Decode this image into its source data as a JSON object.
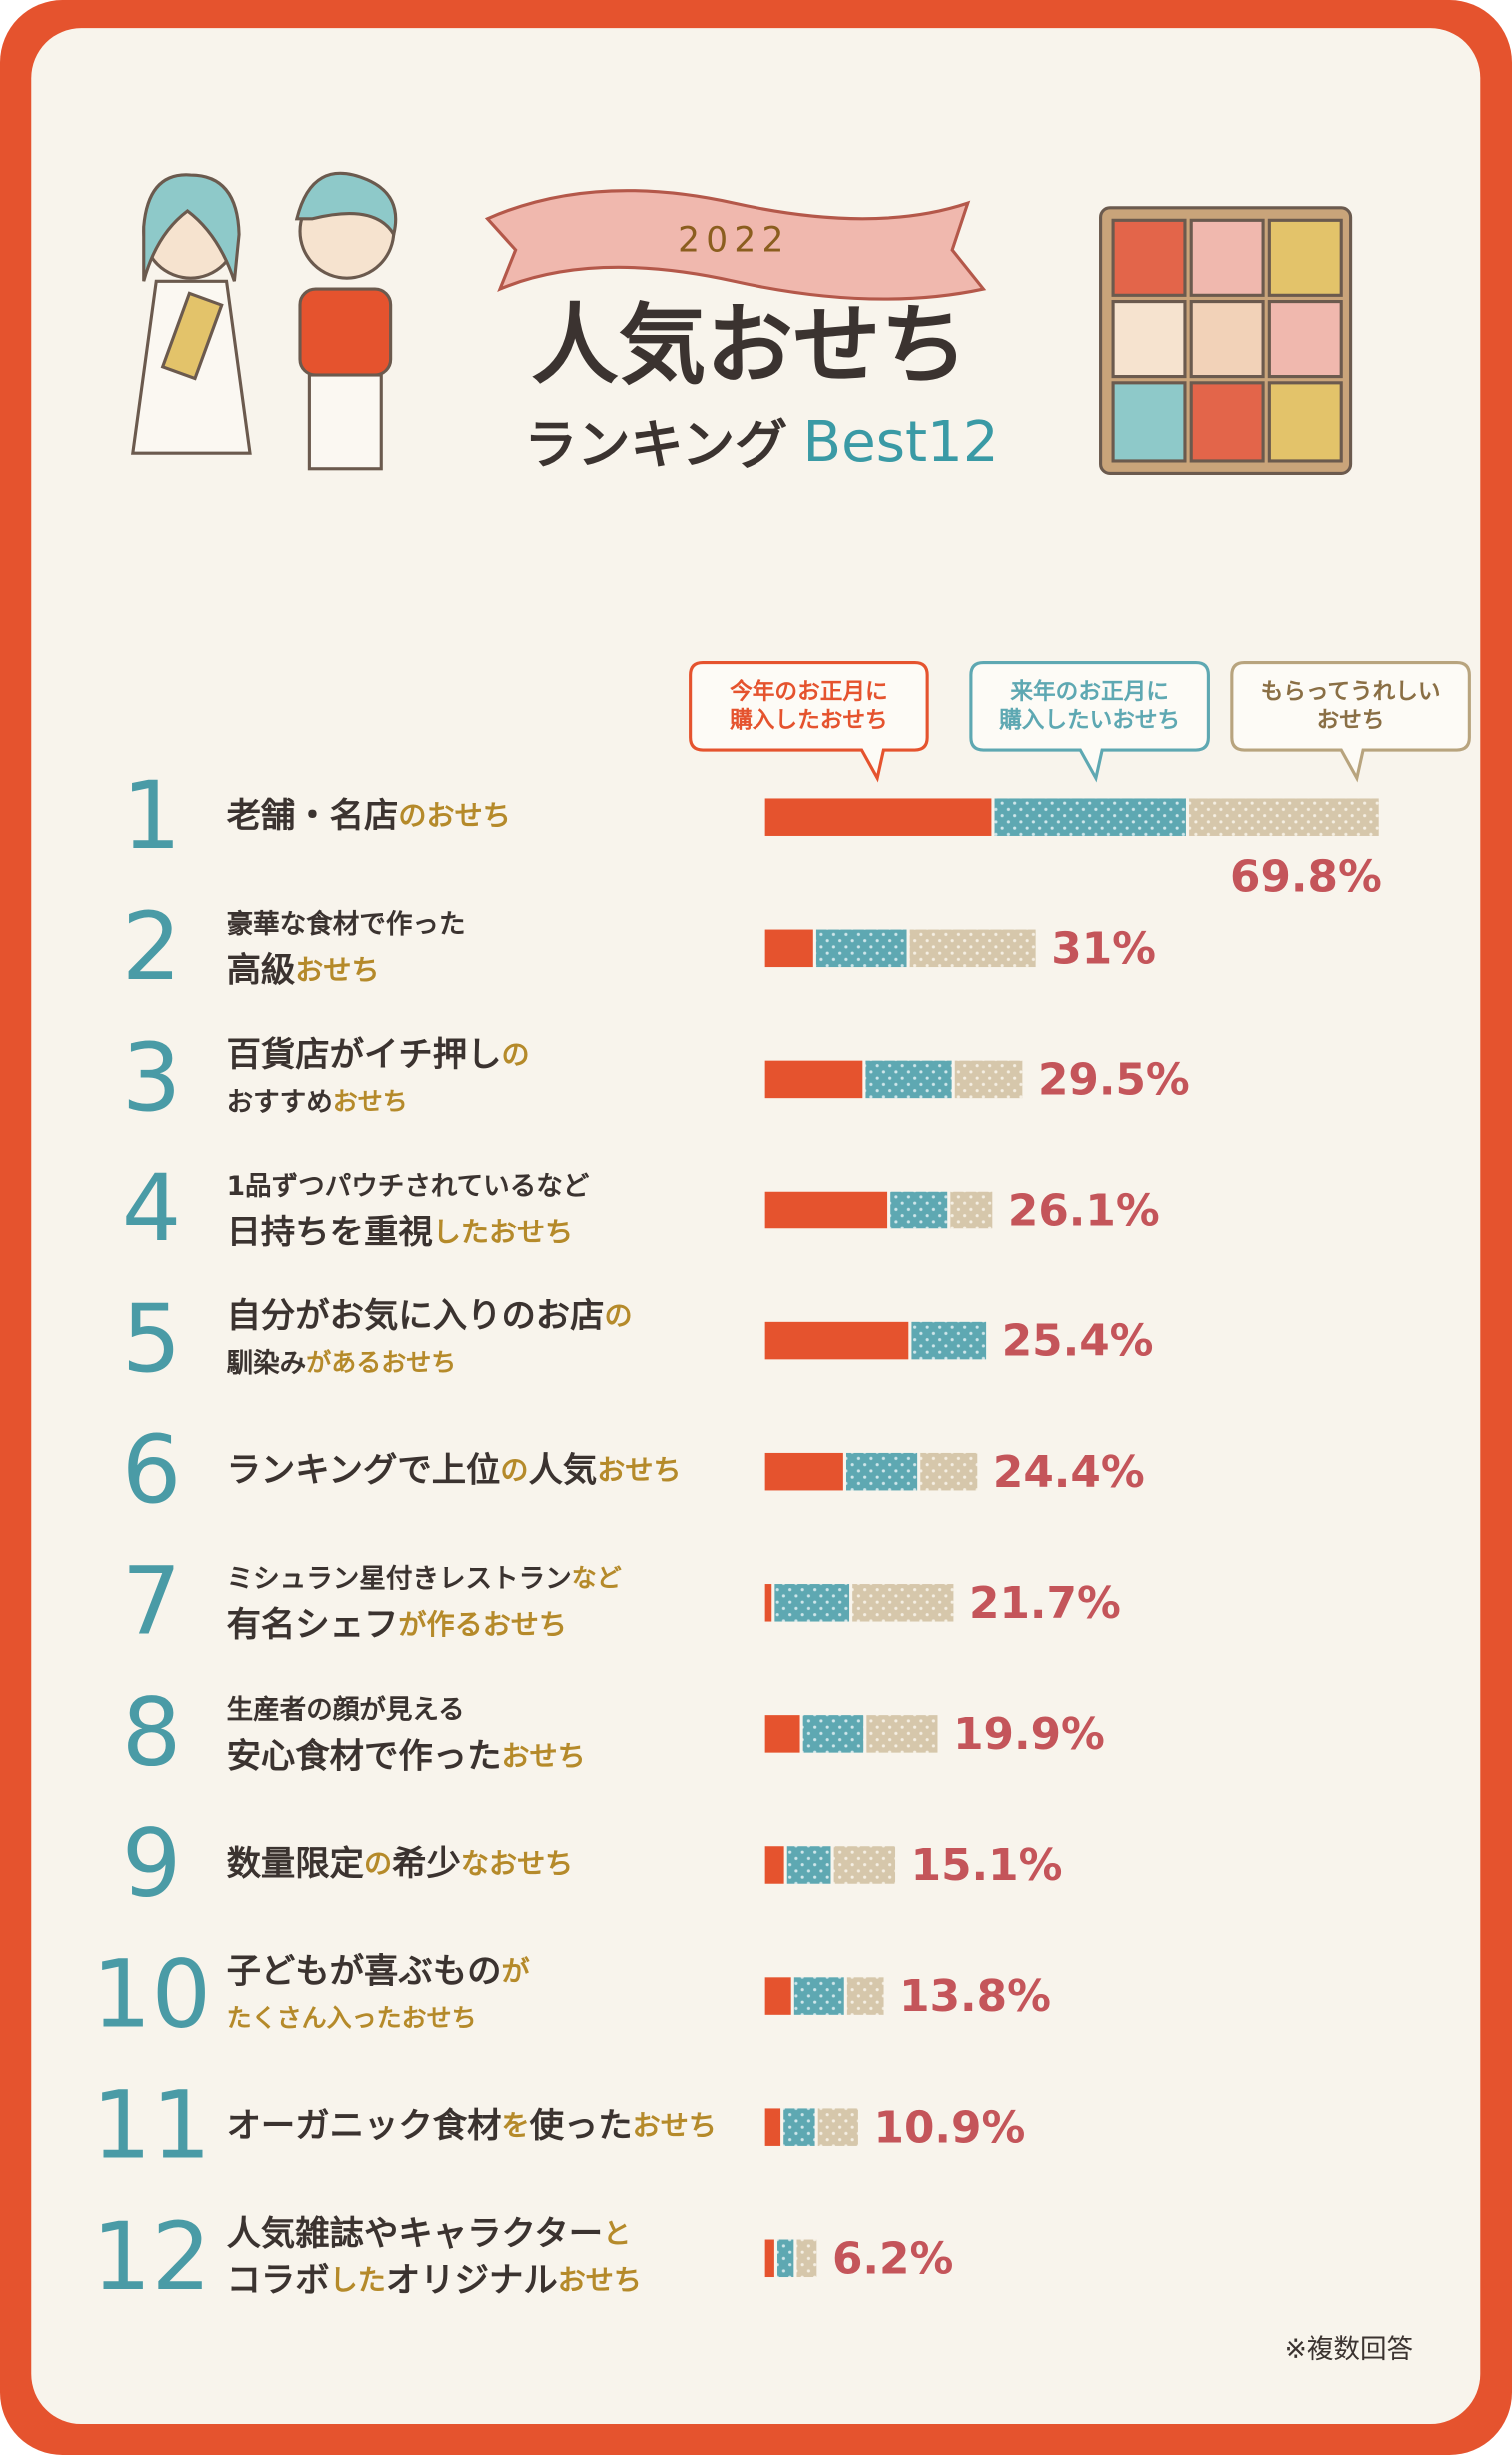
{
  "chart_data": {
    "type": "bar",
    "stacked": true,
    "orientation": "horizontal",
    "year": "2022",
    "title": "人気おせち",
    "subtitle": "ランキング",
    "badge": "Best12",
    "note": "※複数回答",
    "categories": [
      "1",
      "2",
      "3",
      "4",
      "5",
      "6",
      "7",
      "8",
      "9",
      "10",
      "11",
      "12"
    ],
    "labels": [
      [
        {
          "parts": [
            {
              "text": "老舗・名店"
            },
            {
              "text": "のおせち",
              "accent": true
            }
          ]
        }
      ],
      [
        {
          "small": true,
          "parts": [
            {
              "text": "豪華な食材で作った"
            }
          ]
        },
        {
          "parts": [
            {
              "text": "高級"
            },
            {
              "text": "おせち",
              "accent": true
            }
          ]
        }
      ],
      [
        {
          "parts": [
            {
              "text": "百貨店がイチ押し"
            },
            {
              "text": "の",
              "accent": true
            }
          ]
        },
        {
          "small": true,
          "parts": [
            {
              "text": "おすすめ"
            },
            {
              "text": "おせち",
              "accent": true
            }
          ]
        }
      ],
      [
        {
          "small": true,
          "parts": [
            {
              "text": "1品ずつパウチされているなど"
            }
          ]
        },
        {
          "parts": [
            {
              "text": "日持ちを重視"
            },
            {
              "text": "したおせち",
              "accent": true
            }
          ]
        }
      ],
      [
        {
          "parts": [
            {
              "text": "自分がお気に入りのお店"
            },
            {
              "text": "の",
              "accent": true
            }
          ]
        },
        {
          "small": true,
          "parts": [
            {
              "text": "馴染み"
            },
            {
              "text": "があるおせち",
              "accent": true
            }
          ]
        }
      ],
      [
        {
          "parts": [
            {
              "text": "ランキングで上位"
            },
            {
              "text": "の",
              "accent": true
            },
            {
              "text": "人気"
            },
            {
              "text": "おせち",
              "accent": true
            }
          ]
        }
      ],
      [
        {
          "small": true,
          "parts": [
            {
              "text": "ミシュラン星付きレストラン"
            },
            {
              "text": "など",
              "accent": true
            }
          ]
        },
        {
          "parts": [
            {
              "text": "有名シェフ"
            },
            {
              "text": "が作るおせち",
              "accent": true
            }
          ]
        }
      ],
      [
        {
          "small": true,
          "parts": [
            {
              "text": "生産者の顔が見える"
            }
          ]
        },
        {
          "parts": [
            {
              "text": "安心食材で作った"
            },
            {
              "text": "おせち",
              "accent": true
            }
          ]
        }
      ],
      [
        {
          "parts": [
            {
              "text": "数量限定"
            },
            {
              "text": "の",
              "accent": true
            },
            {
              "text": "希少"
            },
            {
              "text": "なおせち",
              "accent": true
            }
          ]
        }
      ],
      [
        {
          "parts": [
            {
              "text": "子どもが喜ぶもの"
            },
            {
              "text": "が",
              "accent": true
            }
          ]
        },
        {
          "small": true,
          "parts": [
            {
              "text": "たくさん入ったおせち",
              "accent": true
            }
          ]
        }
      ],
      [
        {
          "parts": [
            {
              "text": "オーガニック食材"
            },
            {
              "text": "を",
              "accent": true
            },
            {
              "text": "使った"
            },
            {
              "text": "おせち",
              "accent": true
            }
          ]
        }
      ],
      [
        {
          "parts": [
            {
              "text": "人気雑誌やキャラクター"
            },
            {
              "text": "と",
              "accent": true
            }
          ]
        },
        {
          "parts": [
            {
              "text": "コラボ"
            },
            {
              "text": "した",
              "accent": true
            },
            {
              "text": "オリジナル"
            },
            {
              "text": "おせち",
              "accent": true
            }
          ]
        }
      ]
    ],
    "series": [
      {
        "name": "今年のお正月に\n購入したおせち",
        "color": "#e5532e",
        "values": [
          26.0,
          5.8,
          11.4,
          14.2,
          16.6,
          9.2,
          1.1,
          4.3,
          2.5,
          3.3,
          2.1,
          1.4
        ]
      },
      {
        "name": "来年のお正月に\n購入したいおせち",
        "color": "#5ea8b2",
        "values": [
          22.0,
          10.6,
          10.1,
          6.8,
          8.8,
          8.4,
          8.8,
          7.2,
          5.3,
          6.0,
          3.9,
          2.2
        ]
      },
      {
        "name": "もらってうれしい\nおせち",
        "color": "#d6c7ab",
        "values": [
          21.8,
          14.6,
          8.0,
          5.1,
          0,
          6.8,
          11.8,
          8.4,
          7.3,
          4.5,
          4.9,
          2.6
        ]
      }
    ],
    "totals": {
      "values": [
        69.8,
        31,
        29.5,
        26.1,
        25.4,
        24.4,
        21.7,
        19.9,
        15.1,
        13.8,
        10.9,
        6.2
      ],
      "value_labels": [
        "69.8%",
        "31%",
        "29.5%",
        "26.1%",
        "25.4%",
        "24.4%",
        "21.7%",
        "19.9%",
        "15.1%",
        "13.8%",
        "10.9%",
        "6.2%"
      ]
    }
  }
}
